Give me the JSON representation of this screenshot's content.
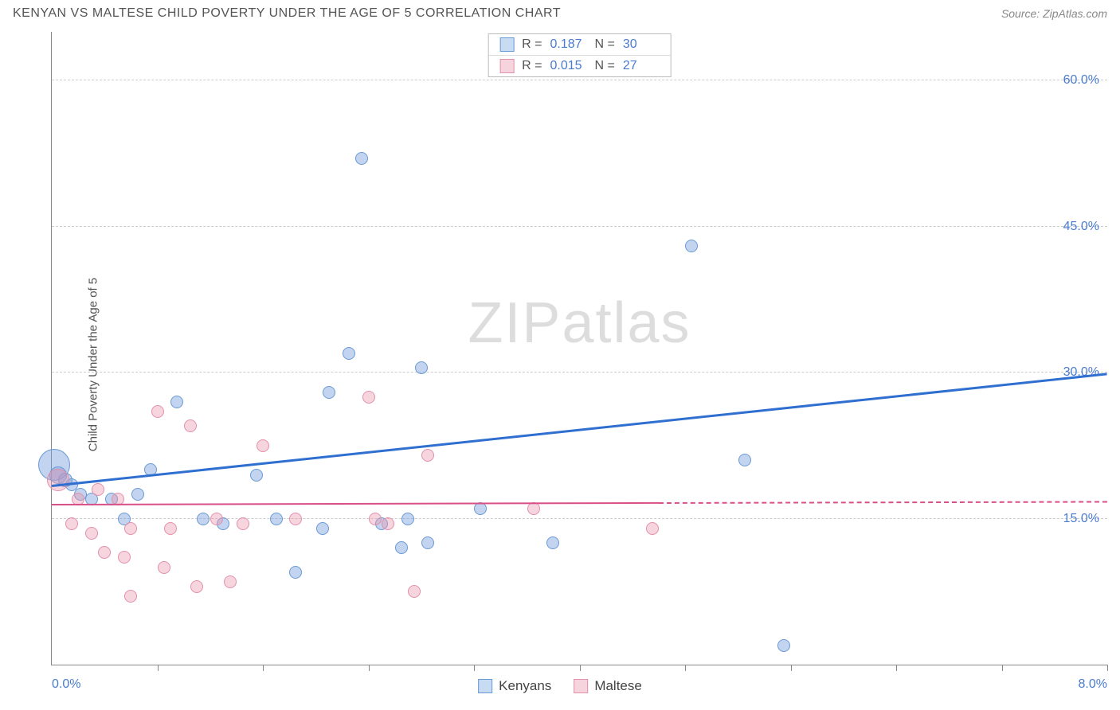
{
  "header": {
    "title": "KENYAN VS MALTESE CHILD POVERTY UNDER THE AGE OF 5 CORRELATION CHART",
    "source_prefix": "Source: ",
    "source": "ZipAtlas.com"
  },
  "watermark": {
    "zip": "ZIP",
    "rest": "atlas"
  },
  "chart": {
    "type": "scatter",
    "ylabel": "Child Poverty Under the Age of 5",
    "xlim": [
      0.0,
      8.0
    ],
    "ylim": [
      0.0,
      65.0
    ],
    "xlabel_min": "0.0%",
    "xlabel_max": "8.0%",
    "yticks": [
      {
        "v": 15.0,
        "label": "15.0%"
      },
      {
        "v": 30.0,
        "label": "30.0%"
      },
      {
        "v": 45.0,
        "label": "45.0%"
      },
      {
        "v": 60.0,
        "label": "60.0%"
      }
    ],
    "xtick_positions": [
      0.8,
      1.6,
      2.4,
      3.2,
      4.0,
      4.8,
      5.6,
      6.4,
      7.2,
      8.0
    ],
    "grid_color": "#cccccc",
    "background_color": "#ffffff",
    "series": [
      {
        "key": "kenyans",
        "label": "Kenyans",
        "color_fill": "rgba(120,160,220,0.45)",
        "color_stroke": "#6a9ad4",
        "swatch_fill": "#c7dbf2",
        "swatch_border": "#6a9ad4",
        "stats": {
          "R": "0.187",
          "N": "30"
        },
        "trend": {
          "x1": 0.0,
          "y1": 18.5,
          "x2": 8.0,
          "y2": 30.0,
          "color": "#2f6fd0",
          "width": 3,
          "solid_until_x": 8.0
        },
        "points": [
          {
            "x": 0.02,
            "y": 20.5,
            "r": 20
          },
          {
            "x": 0.1,
            "y": 19.0,
            "r": 9
          },
          {
            "x": 0.15,
            "y": 18.5,
            "r": 8
          },
          {
            "x": 0.22,
            "y": 17.5,
            "r": 8
          },
          {
            "x": 0.3,
            "y": 17.0,
            "r": 8
          },
          {
            "x": 0.45,
            "y": 17.0,
            "r": 8
          },
          {
            "x": 0.75,
            "y": 20.0,
            "r": 8
          },
          {
            "x": 0.95,
            "y": 27.0,
            "r": 8
          },
          {
            "x": 1.15,
            "y": 15.0,
            "r": 8
          },
          {
            "x": 1.55,
            "y": 19.5,
            "r": 8
          },
          {
            "x": 1.7,
            "y": 15.0,
            "r": 8
          },
          {
            "x": 1.85,
            "y": 9.5,
            "r": 8
          },
          {
            "x": 2.05,
            "y": 14.0,
            "r": 8
          },
          {
            "x": 2.1,
            "y": 28.0,
            "r": 8
          },
          {
            "x": 2.25,
            "y": 32.0,
            "r": 8
          },
          {
            "x": 2.35,
            "y": 52.0,
            "r": 8
          },
          {
            "x": 2.5,
            "y": 14.5,
            "r": 8
          },
          {
            "x": 2.65,
            "y": 12.0,
            "r": 8
          },
          {
            "x": 2.7,
            "y": 15.0,
            "r": 8
          },
          {
            "x": 2.8,
            "y": 30.5,
            "r": 8
          },
          {
            "x": 2.85,
            "y": 12.5,
            "r": 8
          },
          {
            "x": 3.25,
            "y": 16.0,
            "r": 8
          },
          {
            "x": 3.8,
            "y": 12.5,
            "r": 8
          },
          {
            "x": 4.85,
            "y": 43.0,
            "r": 8
          },
          {
            "x": 5.25,
            "y": 21.0,
            "r": 8
          },
          {
            "x": 5.55,
            "y": 2.0,
            "r": 8
          },
          {
            "x": 0.65,
            "y": 17.5,
            "r": 8
          },
          {
            "x": 0.55,
            "y": 15.0,
            "r": 8
          },
          {
            "x": 1.3,
            "y": 14.5,
            "r": 8
          },
          {
            "x": 0.05,
            "y": 19.5,
            "r": 11
          }
        ]
      },
      {
        "key": "maltese",
        "label": "Maltese",
        "color_fill": "rgba(235,150,175,0.40)",
        "color_stroke": "#e290ab",
        "swatch_fill": "#f6d4de",
        "swatch_border": "#e290ab",
        "stats": {
          "R": "0.015",
          "N": "27"
        },
        "trend": {
          "x1": 0.0,
          "y1": 16.5,
          "x2": 8.0,
          "y2": 16.8,
          "color": "#d94f87",
          "width": 2,
          "solid_until_x": 4.6
        },
        "points": [
          {
            "x": 0.05,
            "y": 19.0,
            "r": 14
          },
          {
            "x": 0.3,
            "y": 13.5,
            "r": 8
          },
          {
            "x": 0.35,
            "y": 18.0,
            "r": 8
          },
          {
            "x": 0.4,
            "y": 11.5,
            "r": 8
          },
          {
            "x": 0.55,
            "y": 11.0,
            "r": 8
          },
          {
            "x": 0.6,
            "y": 14.0,
            "r": 8
          },
          {
            "x": 0.6,
            "y": 7.0,
            "r": 8
          },
          {
            "x": 0.8,
            "y": 26.0,
            "r": 8
          },
          {
            "x": 0.85,
            "y": 10.0,
            "r": 8
          },
          {
            "x": 0.9,
            "y": 14.0,
            "r": 8
          },
          {
            "x": 1.05,
            "y": 24.5,
            "r": 8
          },
          {
            "x": 1.1,
            "y": 8.0,
            "r": 8
          },
          {
            "x": 1.25,
            "y": 15.0,
            "r": 8
          },
          {
            "x": 1.35,
            "y": 8.5,
            "r": 8
          },
          {
            "x": 1.45,
            "y": 14.5,
            "r": 8
          },
          {
            "x": 1.6,
            "y": 22.5,
            "r": 8
          },
          {
            "x": 1.85,
            "y": 15.0,
            "r": 8
          },
          {
            "x": 2.4,
            "y": 27.5,
            "r": 8
          },
          {
            "x": 2.45,
            "y": 15.0,
            "r": 8
          },
          {
            "x": 2.55,
            "y": 14.5,
            "r": 8
          },
          {
            "x": 2.75,
            "y": 7.5,
            "r": 8
          },
          {
            "x": 2.85,
            "y": 21.5,
            "r": 8
          },
          {
            "x": 3.65,
            "y": 16.0,
            "r": 8
          },
          {
            "x": 4.55,
            "y": 14.0,
            "r": 8
          },
          {
            "x": 0.15,
            "y": 14.5,
            "r": 8
          },
          {
            "x": 0.2,
            "y": 17.0,
            "r": 8
          },
          {
            "x": 0.5,
            "y": 17.0,
            "r": 8
          }
        ]
      }
    ],
    "stats_labels": {
      "R": "R  =",
      "N": "N  ="
    }
  }
}
